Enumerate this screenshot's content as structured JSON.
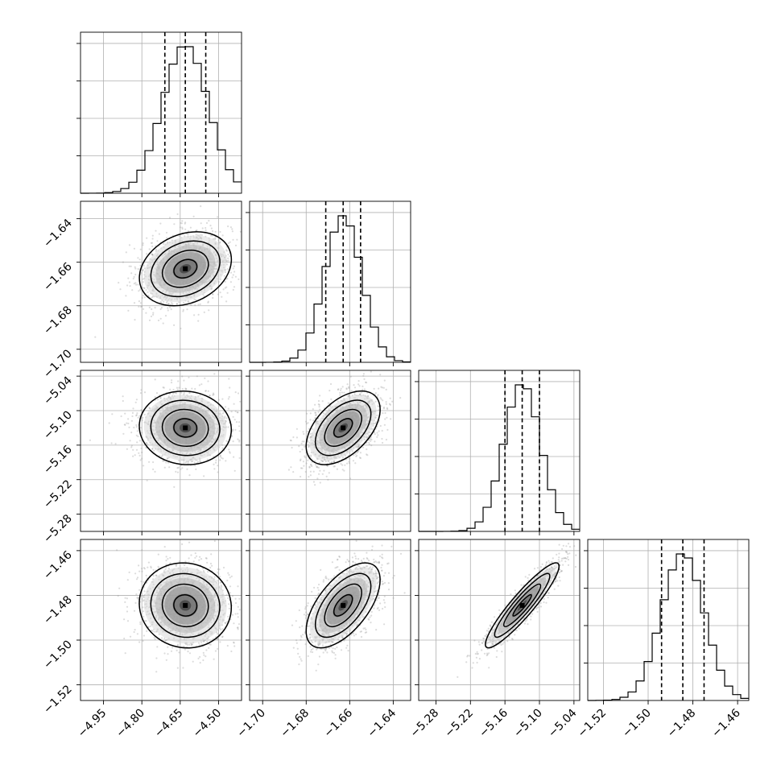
{
  "chart_data": {
    "type": "corner",
    "n_params": 4,
    "histogram_quantiles": [
      0.16,
      0.5,
      0.84
    ],
    "params": [
      {
        "mean": -4.63,
        "sd": 0.09,
        "range": [
          -5.04,
          -4.41
        ],
        "ticks": [
          -4.95,
          -4.8,
          -4.65,
          -4.5
        ],
        "tick_labels": [
          "−4.95",
          "−4.80",
          "−4.65",
          "−4.50"
        ],
        "quantiles": [
          -4.71,
          -4.63,
          -4.55
        ]
      },
      {
        "mean": -1.663,
        "sd": 0.0085,
        "range": [
          -1.706,
          -1.632
        ],
        "ticks": [
          -1.7,
          -1.68,
          -1.66,
          -1.64
        ],
        "tick_labels": [
          "−1.70",
          "−1.68",
          "−1.66",
          "−1.64"
        ],
        "quantiles": [
          -1.671,
          -1.663,
          -1.655
        ]
      },
      {
        "mean": -5.13,
        "sd": 0.032,
        "range": [
          -5.31,
          -5.03
        ],
        "ticks": [
          -5.28,
          -5.22,
          -5.16,
          -5.1,
          -5.04
        ],
        "tick_labels": [
          "−5.28",
          "−5.22",
          "−5.16",
          "−5.10",
          "−5.04"
        ],
        "quantiles": [
          -5.16,
          -5.13,
          -5.1
        ]
      },
      {
        "mean": -1.4845,
        "sd": 0.0095,
        "range": [
          -1.527,
          -1.455
        ],
        "ticks": [
          -1.52,
          -1.5,
          -1.48,
          -1.46
        ],
        "tick_labels": [
          "−1.52",
          "−1.50",
          "−1.48",
          "−1.46"
        ],
        "quantiles": [
          -1.494,
          -1.4845,
          -1.475
        ]
      }
    ],
    "correlations": [
      [
        1.0,
        0.25,
        -0.05,
        -0.05
      ],
      [
        0.25,
        1.0,
        0.5,
        0.6
      ],
      [
        -0.05,
        0.5,
        1.0,
        0.92
      ],
      [
        -0.05,
        0.6,
        0.92,
        1.0
      ]
    ],
    "histogram_bins": 20,
    "scatter_points_per_panel": 1500,
    "contour_levels_sigma": [
      0.5,
      1.0,
      1.5,
      2.0
    ],
    "colors": {
      "line": "#000000",
      "grid": "#b0b0b0",
      "points": "#9a9a9a",
      "background": "#ffffff"
    },
    "grid": true
  }
}
